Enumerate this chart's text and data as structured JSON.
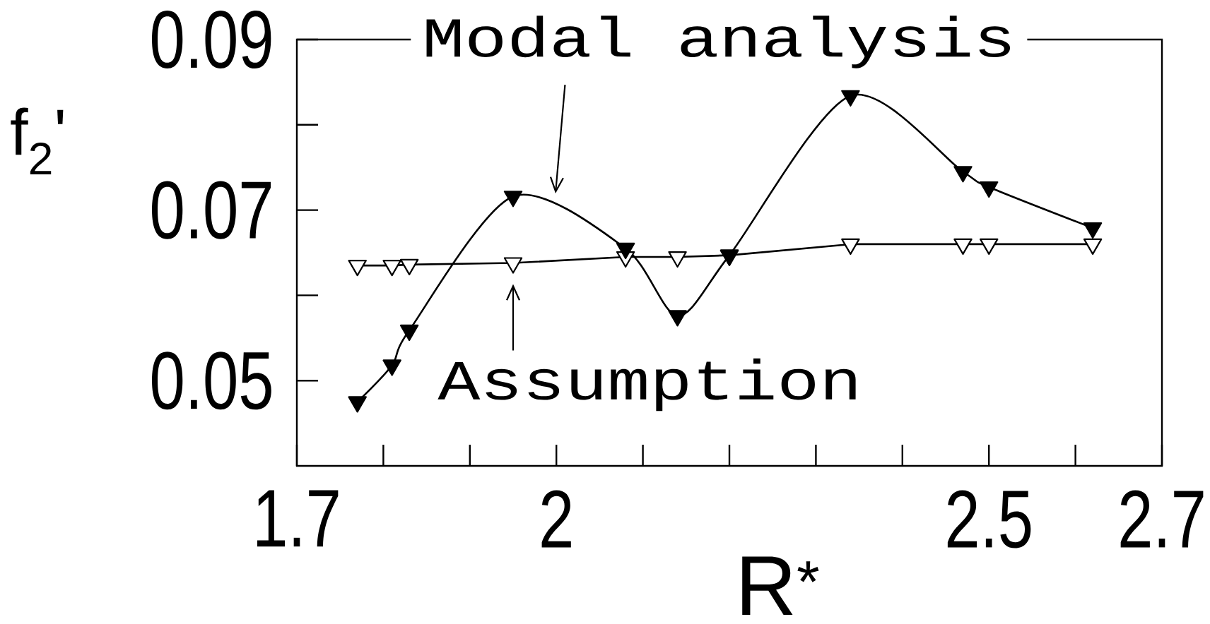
{
  "chart_data": {
    "type": "line",
    "xlabel": "R$^{*}$",
    "ylabel": "f$_{2}$'",
    "x": [
      1.77,
      1.81,
      1.83,
      1.95,
      2.08,
      2.14,
      2.2,
      2.34,
      2.47,
      2.5,
      2.62
    ],
    "xlim": [
      1.7,
      2.7
    ],
    "ylim": [
      0.04,
      0.09
    ],
    "xticks": [
      1.7,
      {
        "value": 1.8,
        "label": null
      },
      {
        "value": 1.9,
        "label": null
      },
      2,
      {
        "value": 2.1,
        "label": null
      },
      {
        "value": 2.2,
        "label": null
      },
      {
        "value": 2.3,
        "label": null
      },
      {
        "value": 2.4,
        "label": null
      },
      2.5,
      {
        "value": 2.6,
        "label": null
      },
      2.7
    ],
    "yticks": [
      0.05,
      {
        "value": 0.06,
        "label": null
      },
      0.07,
      {
        "value": 0.08,
        "label": null
      },
      0.09
    ],
    "series": [
      {
        "color": "#000000",
        "marker": "triangle",
        "values": [
          0.0635,
          0.0635,
          0.0636,
          0.0638,
          0.0645,
          0.0645,
          0.0647,
          0.066,
          0.066,
          0.066,
          0.066
        ]
      },
      {
        "color": "#000000",
        "marker": "triangle",
        "values": [
          0.0475,
          0.0518,
          0.0559,
          0.0716,
          0.0655,
          0.0576,
          0.0647,
          0.0834,
          0.0745,
          0.0727,
          0.0679
        ]
      }
    ],
    "annotations": [
      "Modal analysis",
      {
        "text": "Assumption",
        "x": 1.95,
        "y": 0.0638
      }
    ]
  }
}
